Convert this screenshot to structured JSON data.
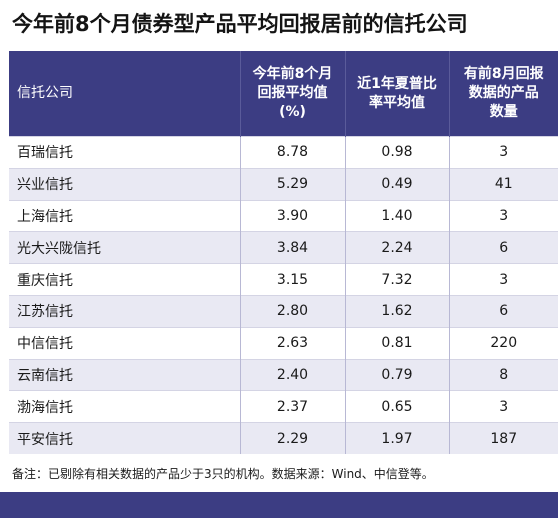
{
  "title": "今年前8个月债券型产品平均回报居前的信托公司",
  "chart_data": {
    "type": "table",
    "title": "今年前8个月债券型产品平均回报居前的信托公司",
    "columns": [
      "信托公司",
      "今年前8个月回报平均值(%)",
      "近1年夏普比率平均值",
      "有前8月回报数据的产品数量"
    ],
    "rows": [
      {
        "company": "百瑞信托",
        "return": "8.78",
        "sharpe": "0.98",
        "count": "3"
      },
      {
        "company": "兴业信托",
        "return": "5.29",
        "sharpe": "0.49",
        "count": "41"
      },
      {
        "company": "上海信托",
        "return": "3.90",
        "sharpe": "1.40",
        "count": "3"
      },
      {
        "company": "光大兴陇信托",
        "return": "3.84",
        "sharpe": "2.24",
        "count": "6"
      },
      {
        "company": "重庆信托",
        "return": "3.15",
        "sharpe": "7.32",
        "count": "3"
      },
      {
        "company": "江苏信托",
        "return": "2.80",
        "sharpe": "1.62",
        "count": "6"
      },
      {
        "company": "中信信托",
        "return": "2.63",
        "sharpe": "0.81",
        "count": "220"
      },
      {
        "company": "云南信托",
        "return": "2.40",
        "sharpe": "0.79",
        "count": "8"
      },
      {
        "company": "渤海信托",
        "return": "2.37",
        "sharpe": "0.65",
        "count": "3"
      },
      {
        "company": "平安信托",
        "return": "2.29",
        "sharpe": "1.97",
        "count": "187"
      }
    ]
  },
  "header": {
    "col1": "信托公司",
    "col2_lines": [
      "今年前8个月",
      "回报平均值",
      "(%)"
    ],
    "col3_lines": [
      "近1年夏普比",
      "率平均值"
    ],
    "col4_lines": [
      "有前8月回报",
      "数据的产品",
      "数量"
    ]
  },
  "note": "备注：已剔除有相关数据的产品少于3只的机构。数据来源：Wind、中信登等。",
  "colors": {
    "header_bg": "#3c3d83",
    "stripe": "#e9e9f3"
  }
}
